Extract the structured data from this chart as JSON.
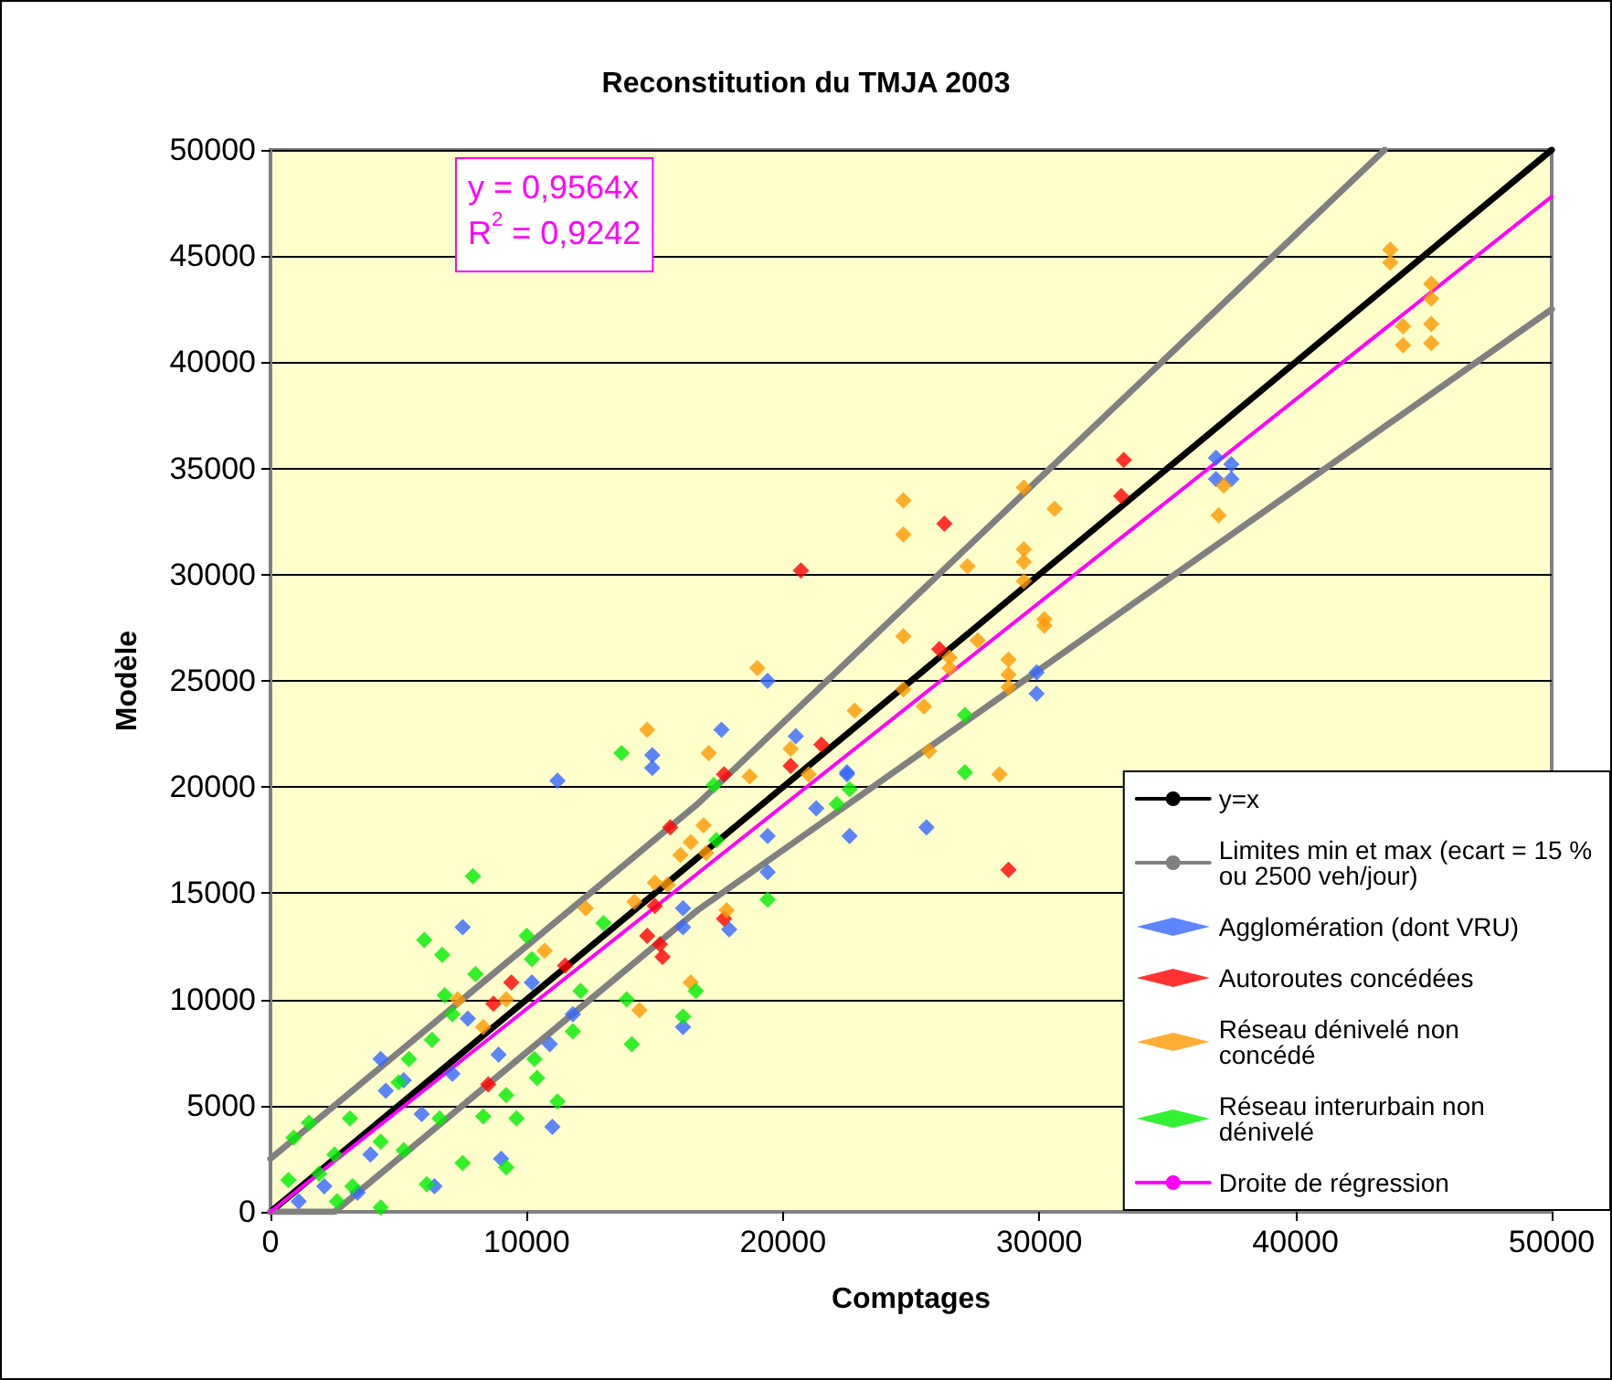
{
  "chart_data": {
    "type": "scatter",
    "title": "Reconstitution du TMJA 2003",
    "xlabel": "Comptages",
    "ylabel": "Modèle",
    "xlim": [
      0,
      50000
    ],
    "ylim": [
      0,
      50000
    ],
    "xticks": [
      0,
      10000,
      20000,
      30000,
      40000,
      50000
    ],
    "yticks": [
      0,
      5000,
      10000,
      15000,
      20000,
      25000,
      30000,
      35000,
      40000,
      45000,
      50000
    ],
    "grid": "y",
    "legend": "bottom right",
    "marker": "diamond",
    "annotations": [
      "y = 0,9564x",
      "R$^{2}$ = 0,9242"
    ],
    "series": [
      {
        "name": "y=x",
        "type": "line",
        "marker": "none",
        "color": "#000000",
        "x": [
          0,
          50000
        ],
        "values": [
          0,
          50000
        ]
      },
      {
        "name": "Limites min et max (ecart = 15 % ou 2500 veh/jour)",
        "type": "line",
        "marker": "none",
        "color": "#808080",
        "x": [
          0,
          16667,
          43478
        ],
        "values": [
          2500,
          19200,
          50000
        ]
      },
      {
        "type": "line",
        "marker": "none",
        "color": "#808080",
        "x": [
          0,
          2500,
          16667,
          50000
        ],
        "values": [
          0,
          0,
          14200,
          42500
        ]
      },
      {
        "name": "Agglomération (dont VRU)",
        "color": "#3366ff",
        "x": [
          36900,
          37500,
          36900,
          37500,
          29900,
          29900,
          25600,
          22600,
          22500,
          19400,
          20500,
          17600,
          17900,
          11200,
          14900,
          14900,
          16100,
          16100,
          16100,
          19400,
          21300,
          22500,
          19400,
          7500,
          10200,
          10900,
          11800,
          8900,
          11000,
          9000,
          6400,
          4300,
          4500,
          5200,
          5900,
          3900,
          3400,
          2100,
          1100,
          7100,
          7700
        ],
        "values": [
          35500,
          35200,
          34500,
          34500,
          25400,
          24400,
          18100,
          17700,
          20600,
          25000,
          22400,
          22700,
          13300,
          20300,
          21500,
          20900,
          14300,
          13400,
          8700,
          16000,
          19000,
          20700,
          17700,
          13400,
          10800,
          7900,
          9300,
          7400,
          4000,
          2500,
          1200,
          7200,
          5700,
          6200,
          4600,
          2700,
          900,
          1200,
          500,
          6500,
          9100
        ]
      },
      {
        "name": "Autoroutes concédées",
        "color": "#ff0000",
        "x": [
          33300,
          33200,
          26300,
          20700,
          26100,
          21500,
          20300,
          17700,
          15600,
          28800,
          17700,
          14700,
          15200,
          15300,
          15000,
          11500,
          9400,
          8700,
          8500
        ],
        "values": [
          35400,
          33700,
          32400,
          30200,
          26500,
          22000,
          21000,
          20600,
          18100,
          16100,
          13800,
          13000,
          12600,
          12000,
          14400,
          11600,
          10800,
          9800,
          6000
        ]
      },
      {
        "name": "Réseau dénivelé non concédé",
        "color": "#ff9900",
        "x": [
          43700,
          43700,
          45300,
          45300,
          44200,
          44200,
          45300,
          45300,
          37200,
          37000,
          29400,
          30600,
          24700,
          24700,
          27200,
          29400,
          29400,
          29400,
          30200,
          30200,
          24700,
          27600,
          26500,
          26500,
          28800,
          28800,
          28800,
          24700,
          25500,
          22800,
          19000,
          20300,
          17100,
          18700,
          21000,
          16400,
          16000,
          17000,
          16900,
          15000,
          14200,
          15500,
          17800,
          28450,
          25700,
          14400,
          16400,
          7300,
          8300,
          9200,
          12300,
          10700,
          14700
        ],
        "values": [
          45300,
          44700,
          43700,
          43000,
          41700,
          40800,
          41800,
          40900,
          34200,
          32800,
          34100,
          33100,
          33500,
          31900,
          30400,
          31200,
          30600,
          29700,
          27900,
          27600,
          27100,
          26900,
          26100,
          25600,
          26000,
          25300,
          24700,
          24600,
          23800,
          23600,
          25600,
          21800,
          21600,
          20500,
          20600,
          17400,
          16800,
          16900,
          18200,
          15500,
          14600,
          15400,
          14200,
          20600,
          21700,
          9500,
          10800,
          10000,
          8700,
          10000,
          14300,
          12300,
          22700
        ]
      },
      {
        "name": "Réseau interurbain non dénivelé",
        "color": "#00ee00",
        "x": [
          13700,
          7900,
          6000,
          6700,
          10000,
          10200,
          8000,
          6800,
          12100,
          13900,
          14100,
          11800,
          10300,
          10400,
          11200,
          9600,
          8300,
          7500,
          9200,
          6100,
          4300,
          2600,
          900,
          1500,
          3100,
          2500,
          4300,
          5200,
          6600,
          5400,
          5000,
          6300,
          7100,
          9200,
          16100,
          16600,
          17300,
          22100,
          22600,
          19400,
          17400,
          13000,
          3200,
          1900,
          700,
          27100,
          27100
        ],
        "values": [
          21600,
          15800,
          12800,
          12100,
          13000,
          11900,
          11200,
          10200,
          10400,
          10000,
          7900,
          8500,
          7200,
          6300,
          5200,
          4400,
          4500,
          2300,
          2100,
          1300,
          200,
          500,
          3500,
          4200,
          4400,
          2700,
          3300,
          2900,
          4400,
          7200,
          6100,
          8100,
          9300,
          5500,
          9200,
          10400,
          20100,
          19200,
          19900,
          14700,
          17500,
          13600,
          1200,
          1800,
          1500,
          23400,
          20700
        ]
      },
      {
        "name": "Droite de régression",
        "type": "line",
        "marker": "none",
        "color": "#ff00ff",
        "x": [
          0,
          50000
        ],
        "values": [
          0,
          47800
        ]
      }
    ]
  }
}
